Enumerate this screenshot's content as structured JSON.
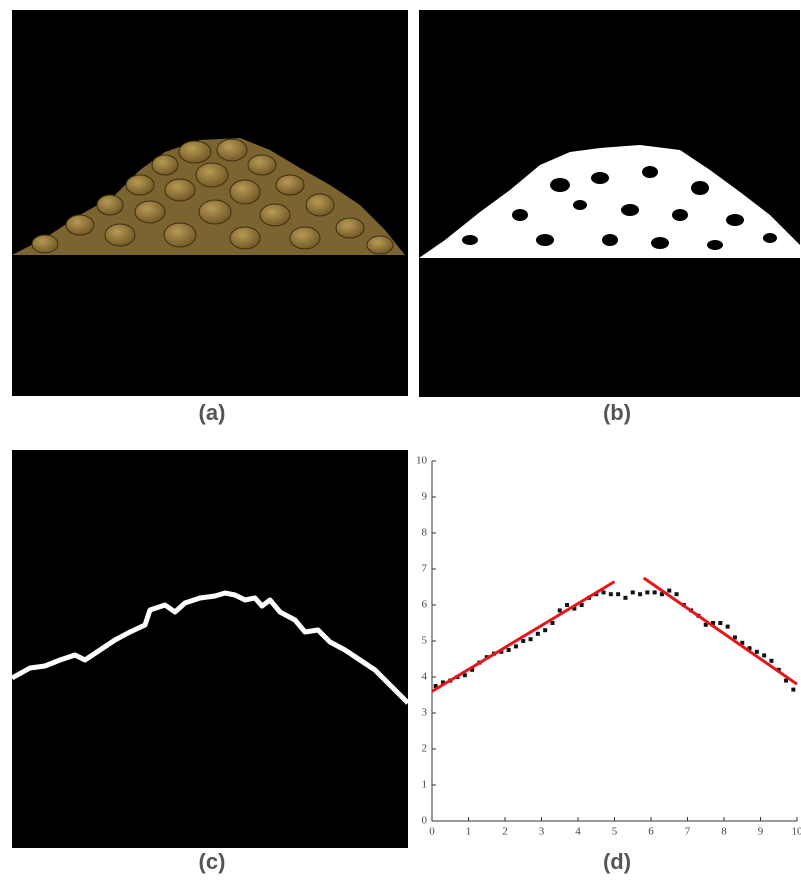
{
  "panel_labels": [
    "(a)",
    "(b)",
    "(c)",
    "(d)"
  ],
  "chart_data": {
    "type": "scatter",
    "x": [
      0.1,
      0.3,
      0.5,
      0.7,
      0.9,
      1.1,
      1.3,
      1.5,
      1.7,
      1.9,
      2.1,
      2.3,
      2.5,
      2.7,
      2.9,
      3.1,
      3.3,
      3.5,
      3.7,
      3.9,
      4.1,
      4.3,
      4.5,
      4.7,
      4.9,
      5.1,
      5.3,
      5.5,
      5.7,
      5.9,
      6.1,
      6.3,
      6.5,
      6.7,
      6.9,
      7.1,
      7.3,
      7.5,
      7.7,
      7.9,
      8.1,
      8.3,
      8.5,
      8.7,
      8.9,
      9.1,
      9.3,
      9.5,
      9.7,
      9.9
    ],
    "values": [
      3.75,
      3.85,
      3.9,
      4.0,
      4.05,
      4.2,
      4.4,
      4.55,
      4.65,
      4.7,
      4.75,
      4.85,
      5.0,
      5.05,
      5.2,
      5.3,
      5.5,
      5.85,
      6.0,
      5.9,
      6.0,
      6.2,
      6.3,
      6.35,
      6.3,
      6.3,
      6.2,
      6.35,
      6.3,
      6.35,
      6.35,
      6.3,
      6.4,
      6.3,
      6.0,
      5.85,
      5.7,
      5.45,
      5.5,
      5.5,
      5.4,
      5.1,
      4.95,
      4.8,
      4.7,
      4.6,
      4.45,
      4.2,
      3.9,
      3.65
    ],
    "color": "#111111",
    "fit_lines": [
      {
        "color": "#e8141b",
        "x": [
          0,
          5
        ],
        "values": [
          3.6,
          6.65
        ]
      },
      {
        "color": "#e8141b",
        "x": [
          5.8,
          10
        ],
        "values": [
          6.75,
          3.8
        ]
      }
    ],
    "xlim": [
      0,
      10
    ],
    "ylim": [
      0,
      10
    ],
    "xticks": [
      0,
      1,
      2,
      3,
      4,
      5,
      6,
      7,
      8,
      9,
      10
    ],
    "yticks": [
      0,
      1,
      2,
      3,
      4,
      5,
      6,
      7,
      8,
      9,
      10
    ]
  }
}
